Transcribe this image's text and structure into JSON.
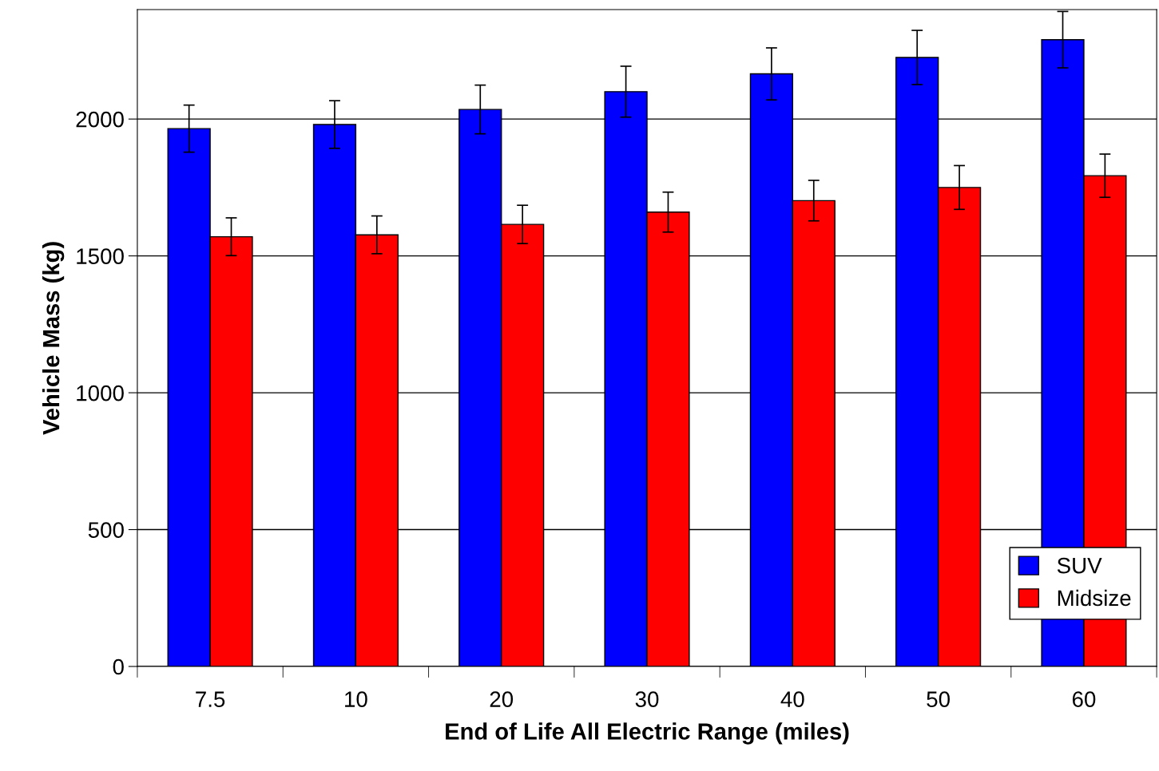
{
  "chart_data": {
    "type": "bar",
    "xlabel": "End of Life All Electric Range (miles)",
    "ylabel": "Vehicle Mass (kg)",
    "categories": [
      "7.5",
      "10",
      "20",
      "30",
      "40",
      "50",
      "60"
    ],
    "series": [
      {
        "name": "SUV",
        "color": "#0000ff",
        "values": [
          1965,
          1980,
          2035,
          2100,
          2165,
          2225,
          2290
        ],
        "errors": [
          86,
          87,
          89,
          93,
          95,
          99,
          103
        ]
      },
      {
        "name": "Midsize",
        "color": "#ff0000",
        "values": [
          1570,
          1577,
          1615,
          1660,
          1702,
          1750,
          1793
        ],
        "errors": [
          69,
          69,
          70,
          73,
          74,
          80,
          79
        ]
      }
    ],
    "ylim": [
      0,
      2400
    ],
    "yticks": [
      0,
      500,
      1000,
      1500,
      2000
    ],
    "grid": "y",
    "legend": "bottom right"
  }
}
